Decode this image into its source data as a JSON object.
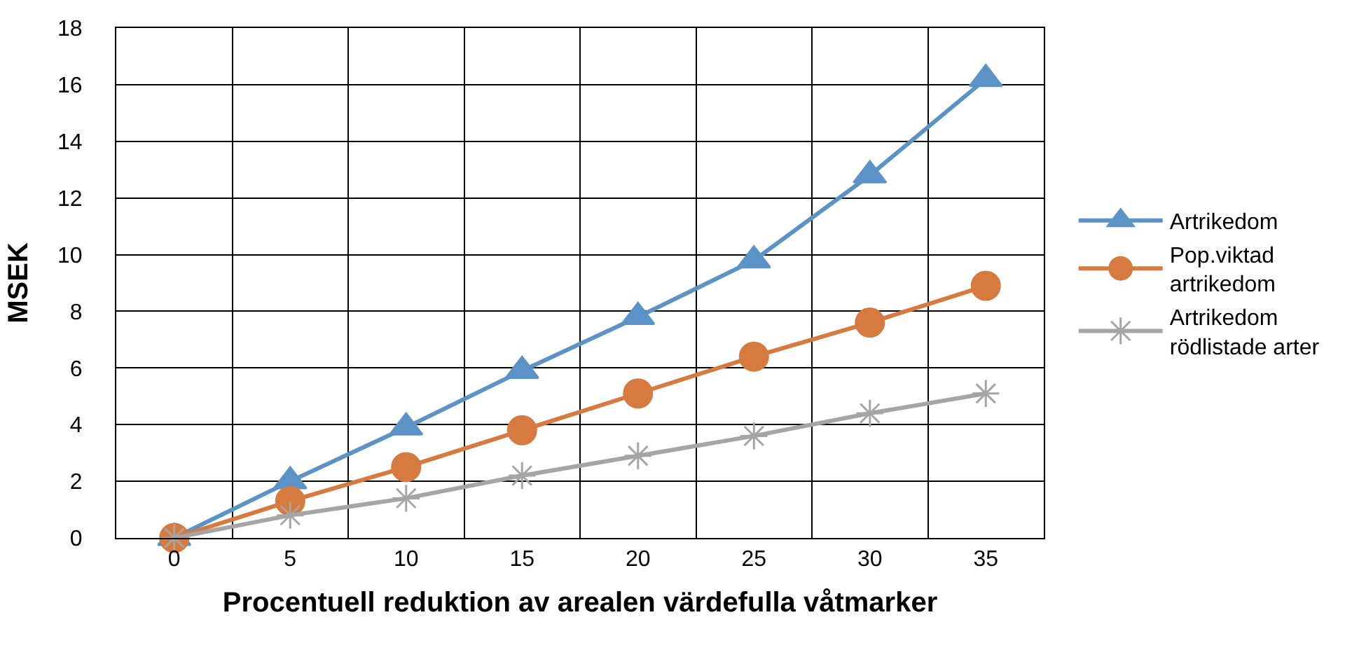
{
  "chart_data": {
    "type": "line",
    "xlabel": "Procentuell reduktion av arealen värdefulla våtmarker",
    "ylabel": "MSEK",
    "categories": [
      "0",
      "5",
      "10",
      "15",
      "20",
      "25",
      "30",
      "35"
    ],
    "series": [
      {
        "name": "Artrikedom",
        "color": "#5b93c7",
        "marker": "triangle",
        "values": [
          0,
          2.0,
          3.9,
          5.9,
          7.8,
          9.8,
          12.8,
          16.2
        ]
      },
      {
        "name": "Pop.viktad artrikedom",
        "color": "#d67a40",
        "marker": "circle",
        "values": [
          0,
          1.3,
          2.5,
          3.8,
          5.1,
          6.4,
          7.6,
          8.9
        ]
      },
      {
        "name": "Artrikedom rödlistade arter",
        "color": "#a5a5a5",
        "marker": "cross",
        "values": [
          0,
          0.8,
          1.4,
          2.2,
          2.9,
          3.6,
          4.4,
          5.1
        ]
      }
    ],
    "ylim": [
      0,
      18
    ],
    "yticks": [
      0,
      2,
      4,
      6,
      8,
      10,
      12,
      14,
      16,
      18
    ],
    "grid": true,
    "legend": "right",
    "line_style": "solid"
  }
}
